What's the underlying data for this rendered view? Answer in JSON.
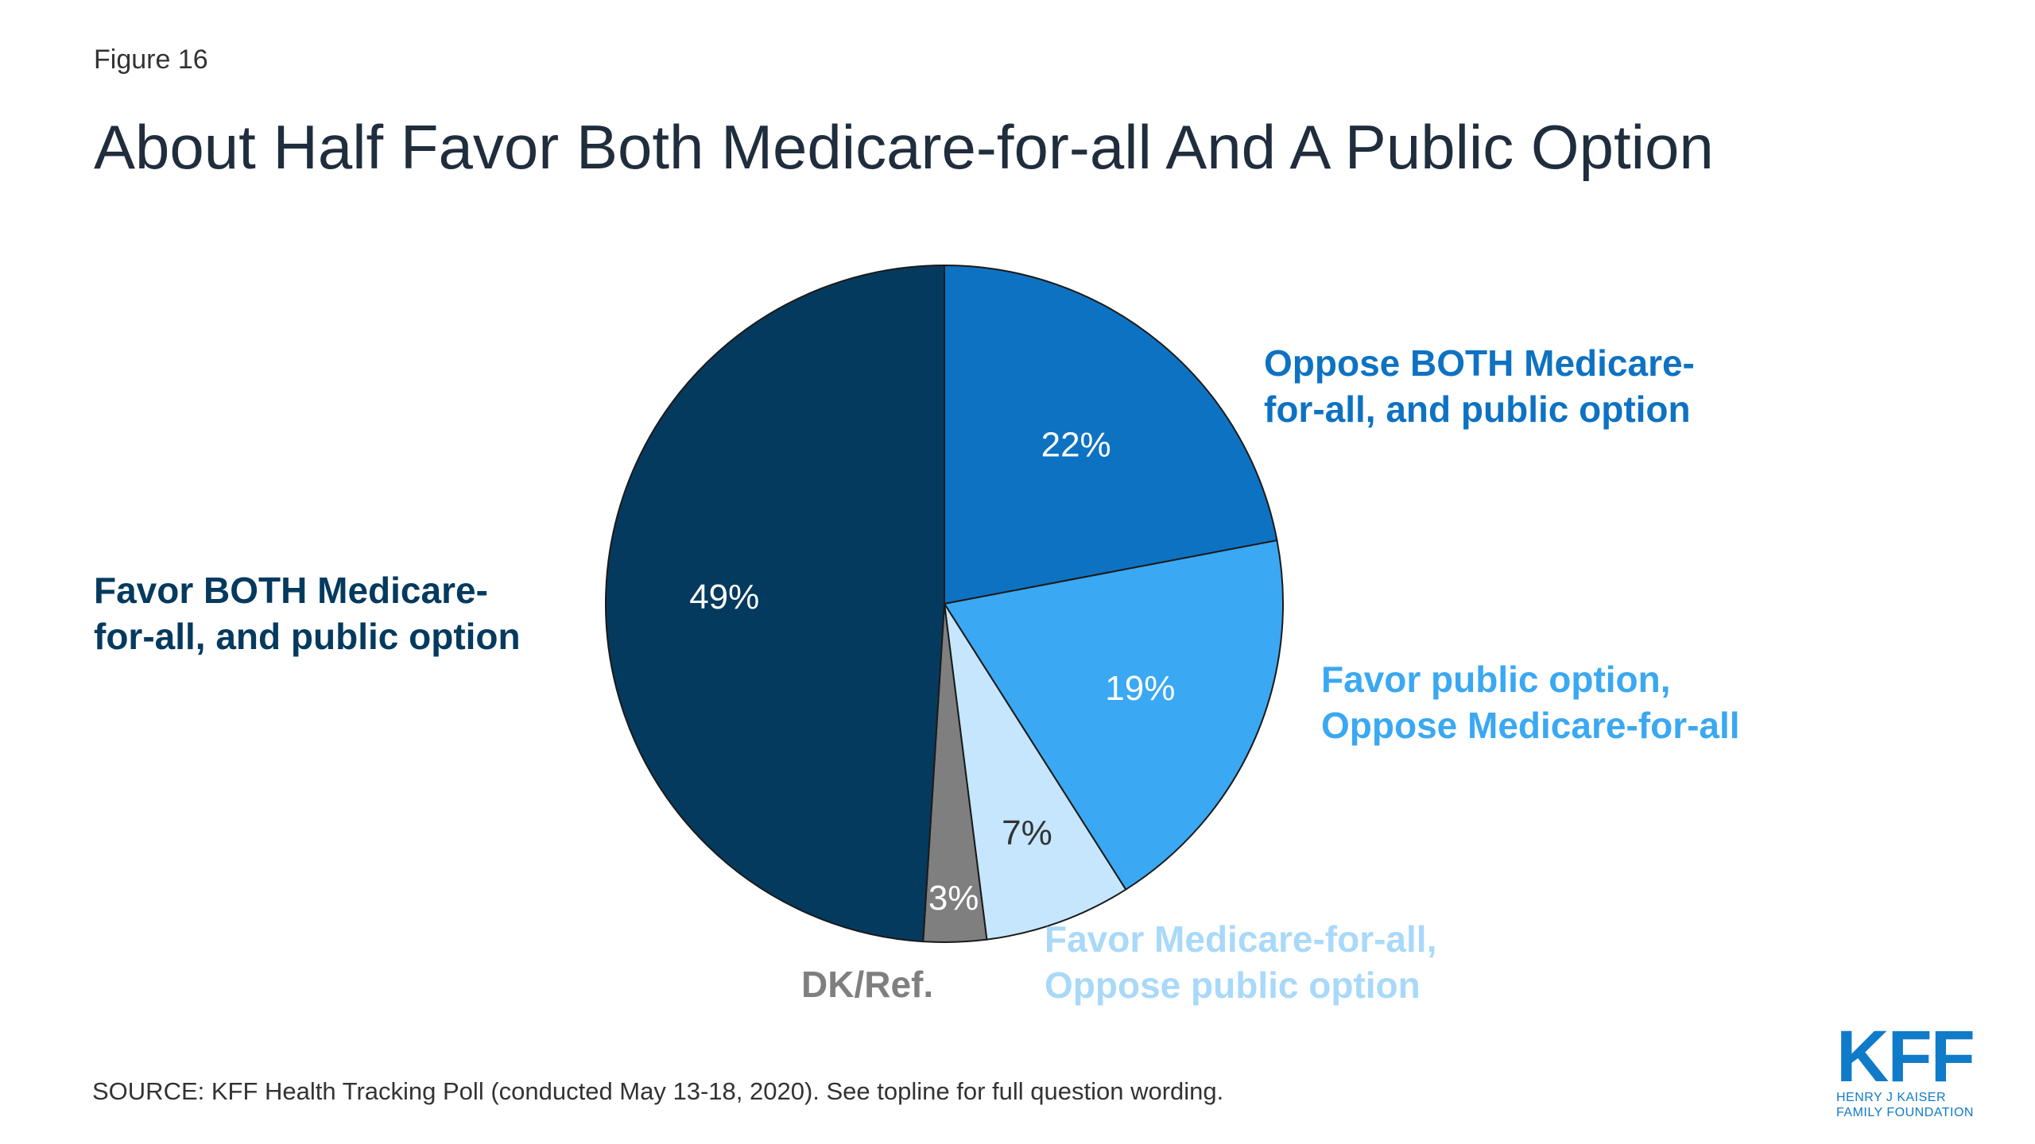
{
  "figure_label": "Figure 16",
  "title": "About Half Favor Both Medicare-for-all And A Public Option",
  "source": "SOURCE: KFF Health Tracking Poll (conducted May 13-18, 2020). See topline for full question wording.",
  "logo": {
    "mark": "KFF",
    "line1": "HENRY J KAISER",
    "line2": "FAMILY FOUNDATION"
  },
  "chart_data": {
    "type": "pie",
    "title": "About Half Favor Both Medicare-for-all And A Public Option",
    "start": "12 o'clock",
    "direction": "clockwise",
    "slices": [
      {
        "key": "oppose_both",
        "value": 22,
        "value_label": "22%",
        "label_lines": [
          "Oppose BOTH Medicare-",
          "for-all, and public option"
        ],
        "color": "#0e72c2",
        "label_color": "#0e72c2",
        "value_text_color": "#ffffff"
      },
      {
        "key": "favor_public_oppose_mfa",
        "value": 19,
        "value_label": "19%",
        "label_lines": [
          "Favor public option,",
          "Oppose Medicare-for-all"
        ],
        "color": "#3aa8f2",
        "label_color": "#3aa8f2",
        "value_text_color": "#ffffff"
      },
      {
        "key": "favor_mfa_oppose_public",
        "value": 7,
        "value_label": "7%",
        "label_lines": [
          "Favor Medicare-for-all,",
          "Oppose public option"
        ],
        "color": "#c5e6fc",
        "label_color": "#a9d9f9",
        "value_text_color": "#333333"
      },
      {
        "key": "dk_ref",
        "value": 3,
        "value_label": "3%",
        "label_lines": [
          "DK/Ref."
        ],
        "color": "#7f7f7f",
        "label_color": "#7f7f7f",
        "value_text_color": "#ffffff"
      },
      {
        "key": "favor_both",
        "value": 49,
        "value_label": "49%",
        "label_lines": [
          "Favor BOTH Medicare-",
          "for-all, and public option"
        ],
        "color": "#053a5f",
        "label_color": "#053a5f",
        "value_text_color": "#ffffff"
      }
    ]
  }
}
